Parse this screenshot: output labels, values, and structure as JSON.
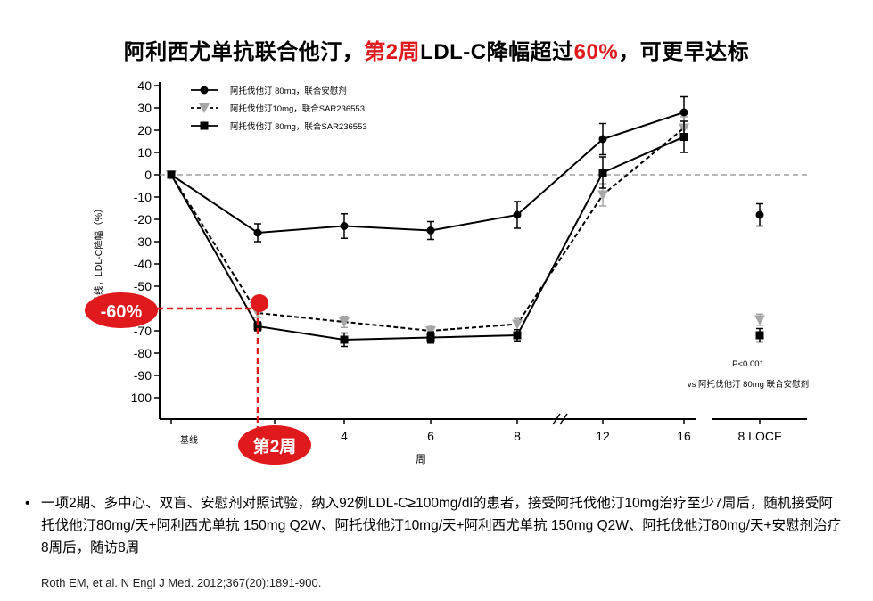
{
  "title": {
    "part1": "阿利西尤单抗联合他汀，",
    "part2": "第2周",
    "part3": "LDL-C降幅超过",
    "part4": "60%",
    "part5": "，可更早达标"
  },
  "chart_data": {
    "type": "line",
    "xlabel": "周",
    "ylabel": "基线，LDL-C降幅（%）",
    "ylim": [
      -110,
      40
    ],
    "yticks": [
      40,
      30,
      20,
      10,
      0,
      -10,
      -20,
      -30,
      -40,
      -50,
      -60,
      -70,
      -80,
      -90,
      -100
    ],
    "xticks": [
      {
        "x": 0,
        "label": "基线"
      },
      {
        "x": 4,
        "label": "4"
      },
      {
        "x": 6,
        "label": "6"
      },
      {
        "x": 8,
        "label": "8"
      },
      {
        "x": 12,
        "label": "12"
      },
      {
        "x": 16,
        "label": "16"
      },
      {
        "x": "LOCF",
        "label": "8 LOCF"
      }
    ],
    "series": [
      {
        "name": "阿托伐他汀 80mg，联合安慰剂",
        "marker": "circle",
        "dash": false,
        "color": "#000000",
        "points": [
          {
            "x": 0,
            "y": 0
          },
          {
            "x": 2,
            "y": -26,
            "err": 4
          },
          {
            "x": 4,
            "y": -23,
            "err": 5.5
          },
          {
            "x": 6,
            "y": -25,
            "err": 4
          },
          {
            "x": 8,
            "y": -18,
            "err": 6
          }
        ],
        "after_break": [
          {
            "x": 12,
            "y": 16,
            "err": 7
          },
          {
            "x": 16,
            "y": 28,
            "err": 7
          }
        ],
        "locf": {
          "y": -18,
          "err": 5
        }
      },
      {
        "name": "阿托伐他汀10mg，联合SAR236553",
        "marker": "triangle",
        "dash": true,
        "color": "#a6a6a6",
        "points": [
          {
            "x": 0,
            "y": 0
          },
          {
            "x": 2,
            "y": -62,
            "err": 2
          },
          {
            "x": 4,
            "y": -66,
            "err": 2.5
          },
          {
            "x": 6,
            "y": -70,
            "err": 2.5
          },
          {
            "x": 8,
            "y": -67,
            "err": 2.5
          }
        ],
        "after_break": [
          {
            "x": 12,
            "y": -9,
            "err": 5
          },
          {
            "x": 16,
            "y": 21,
            "err": 5
          }
        ],
        "locf": {
          "y": -65,
          "err": 2.5
        }
      },
      {
        "name": "阿托伐他汀 80mg，联合SAR236553",
        "marker": "square",
        "dash": false,
        "color": "#000000",
        "points": [
          {
            "x": 0,
            "y": 0
          },
          {
            "x": 2,
            "y": -68,
            "err": 2
          },
          {
            "x": 4,
            "y": -74,
            "err": 3
          },
          {
            "x": 6,
            "y": -73,
            "err": 2.5
          },
          {
            "x": 8,
            "y": -72,
            "err": 2.5
          }
        ],
        "after_break": [
          {
            "x": 12,
            "y": 1,
            "err": 7
          },
          {
            "x": 16,
            "y": 17,
            "err": 7
          }
        ],
        "locf": {
          "y": -72,
          "err": 3
        }
      }
    ],
    "annotations": {
      "reference_line_y": 0,
      "highlight_y": -60,
      "highlight_label": "-60%",
      "highlight_week": 2,
      "highlight_week_label": "第2周",
      "pvalue": "P<0.001",
      "pvalue_note": "vs 阿托伐他汀 80mg 联合安慰剂"
    }
  },
  "colors": {
    "accent_red": "#e0191d",
    "gray_series": "#a6a6a6",
    "dashed_reference": "#a0a0a0"
  },
  "footnote": {
    "bullet": "•",
    "text": "一项2期、多中心、双盲、安慰剂对照试验，纳入92例LDL-C≥100mg/dl的患者，接受阿托伐他汀10mg治疗至少7周后，随机接受阿托伐他汀80mg/天+阿利西尤单抗 150mg Q2W、阿托伐他汀10mg/天+阿利西尤单抗 150mg Q2W、阿托伐他汀80mg/天+安慰剂治疗8周后，随访8周",
    "citation": "Roth EM, et al. N Engl J Med. 2012;367(20):1891-900."
  }
}
